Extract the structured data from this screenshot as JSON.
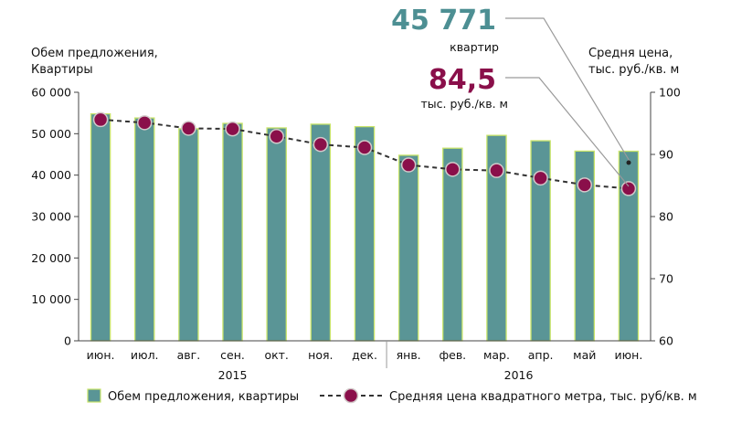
{
  "chart_data": {
    "type": "bar",
    "categories": [
      "июн.",
      "июл.",
      "авг.",
      "сен.",
      "окт.",
      "ноя.",
      "дек.",
      "янв.",
      "фев.",
      "мар.",
      "апр.",
      "май",
      "июн."
    ],
    "years": [
      {
        "label": "2015",
        "from": 0,
        "to": 6
      },
      {
        "label": "2016",
        "from": 7,
        "to": 12
      }
    ],
    "series": [
      {
        "name": "Обем предложения, квартиры",
        "kind": "bar",
        "axis": "left",
        "color": "#5a9596",
        "border": "#c9e46a",
        "values": [
          54800,
          53800,
          51200,
          52500,
          51400,
          52300,
          51700,
          44800,
          46500,
          49600,
          48300,
          45800,
          45771
        ]
      },
      {
        "name": "Средняя цена квадратного метра, тыс. руб/кв. м",
        "kind": "line",
        "axis": "right",
        "color": "#8a0f4a",
        "values": [
          95.6,
          95.1,
          94.2,
          94.1,
          92.9,
          91.6,
          91.1,
          88.3,
          87.6,
          87.4,
          86.2,
          85.1,
          84.5
        ]
      }
    ],
    "left_axis": {
      "title_line1": "Обем предложения,",
      "title_line2": "Квартиры",
      "ylim": [
        0,
        60000
      ],
      "ticks": [
        "0",
        "10 000",
        "20 000",
        "30 000",
        "40 000",
        "50 000",
        "60 000"
      ]
    },
    "right_axis": {
      "title_line1": "Средня цена,",
      "title_line2": "тыс. руб./кв. м",
      "ylim": [
        60,
        100
      ],
      "ticks": [
        "60",
        "70",
        "80",
        "90",
        "100"
      ]
    },
    "callouts": [
      {
        "value": "45 771",
        "unit": "квартир",
        "color": "#4d8f93"
      },
      {
        "value": "84,5",
        "unit": "тыс. руб./кв. м",
        "color": "#8a0f4a"
      }
    ],
    "legend_position": "bottom"
  }
}
